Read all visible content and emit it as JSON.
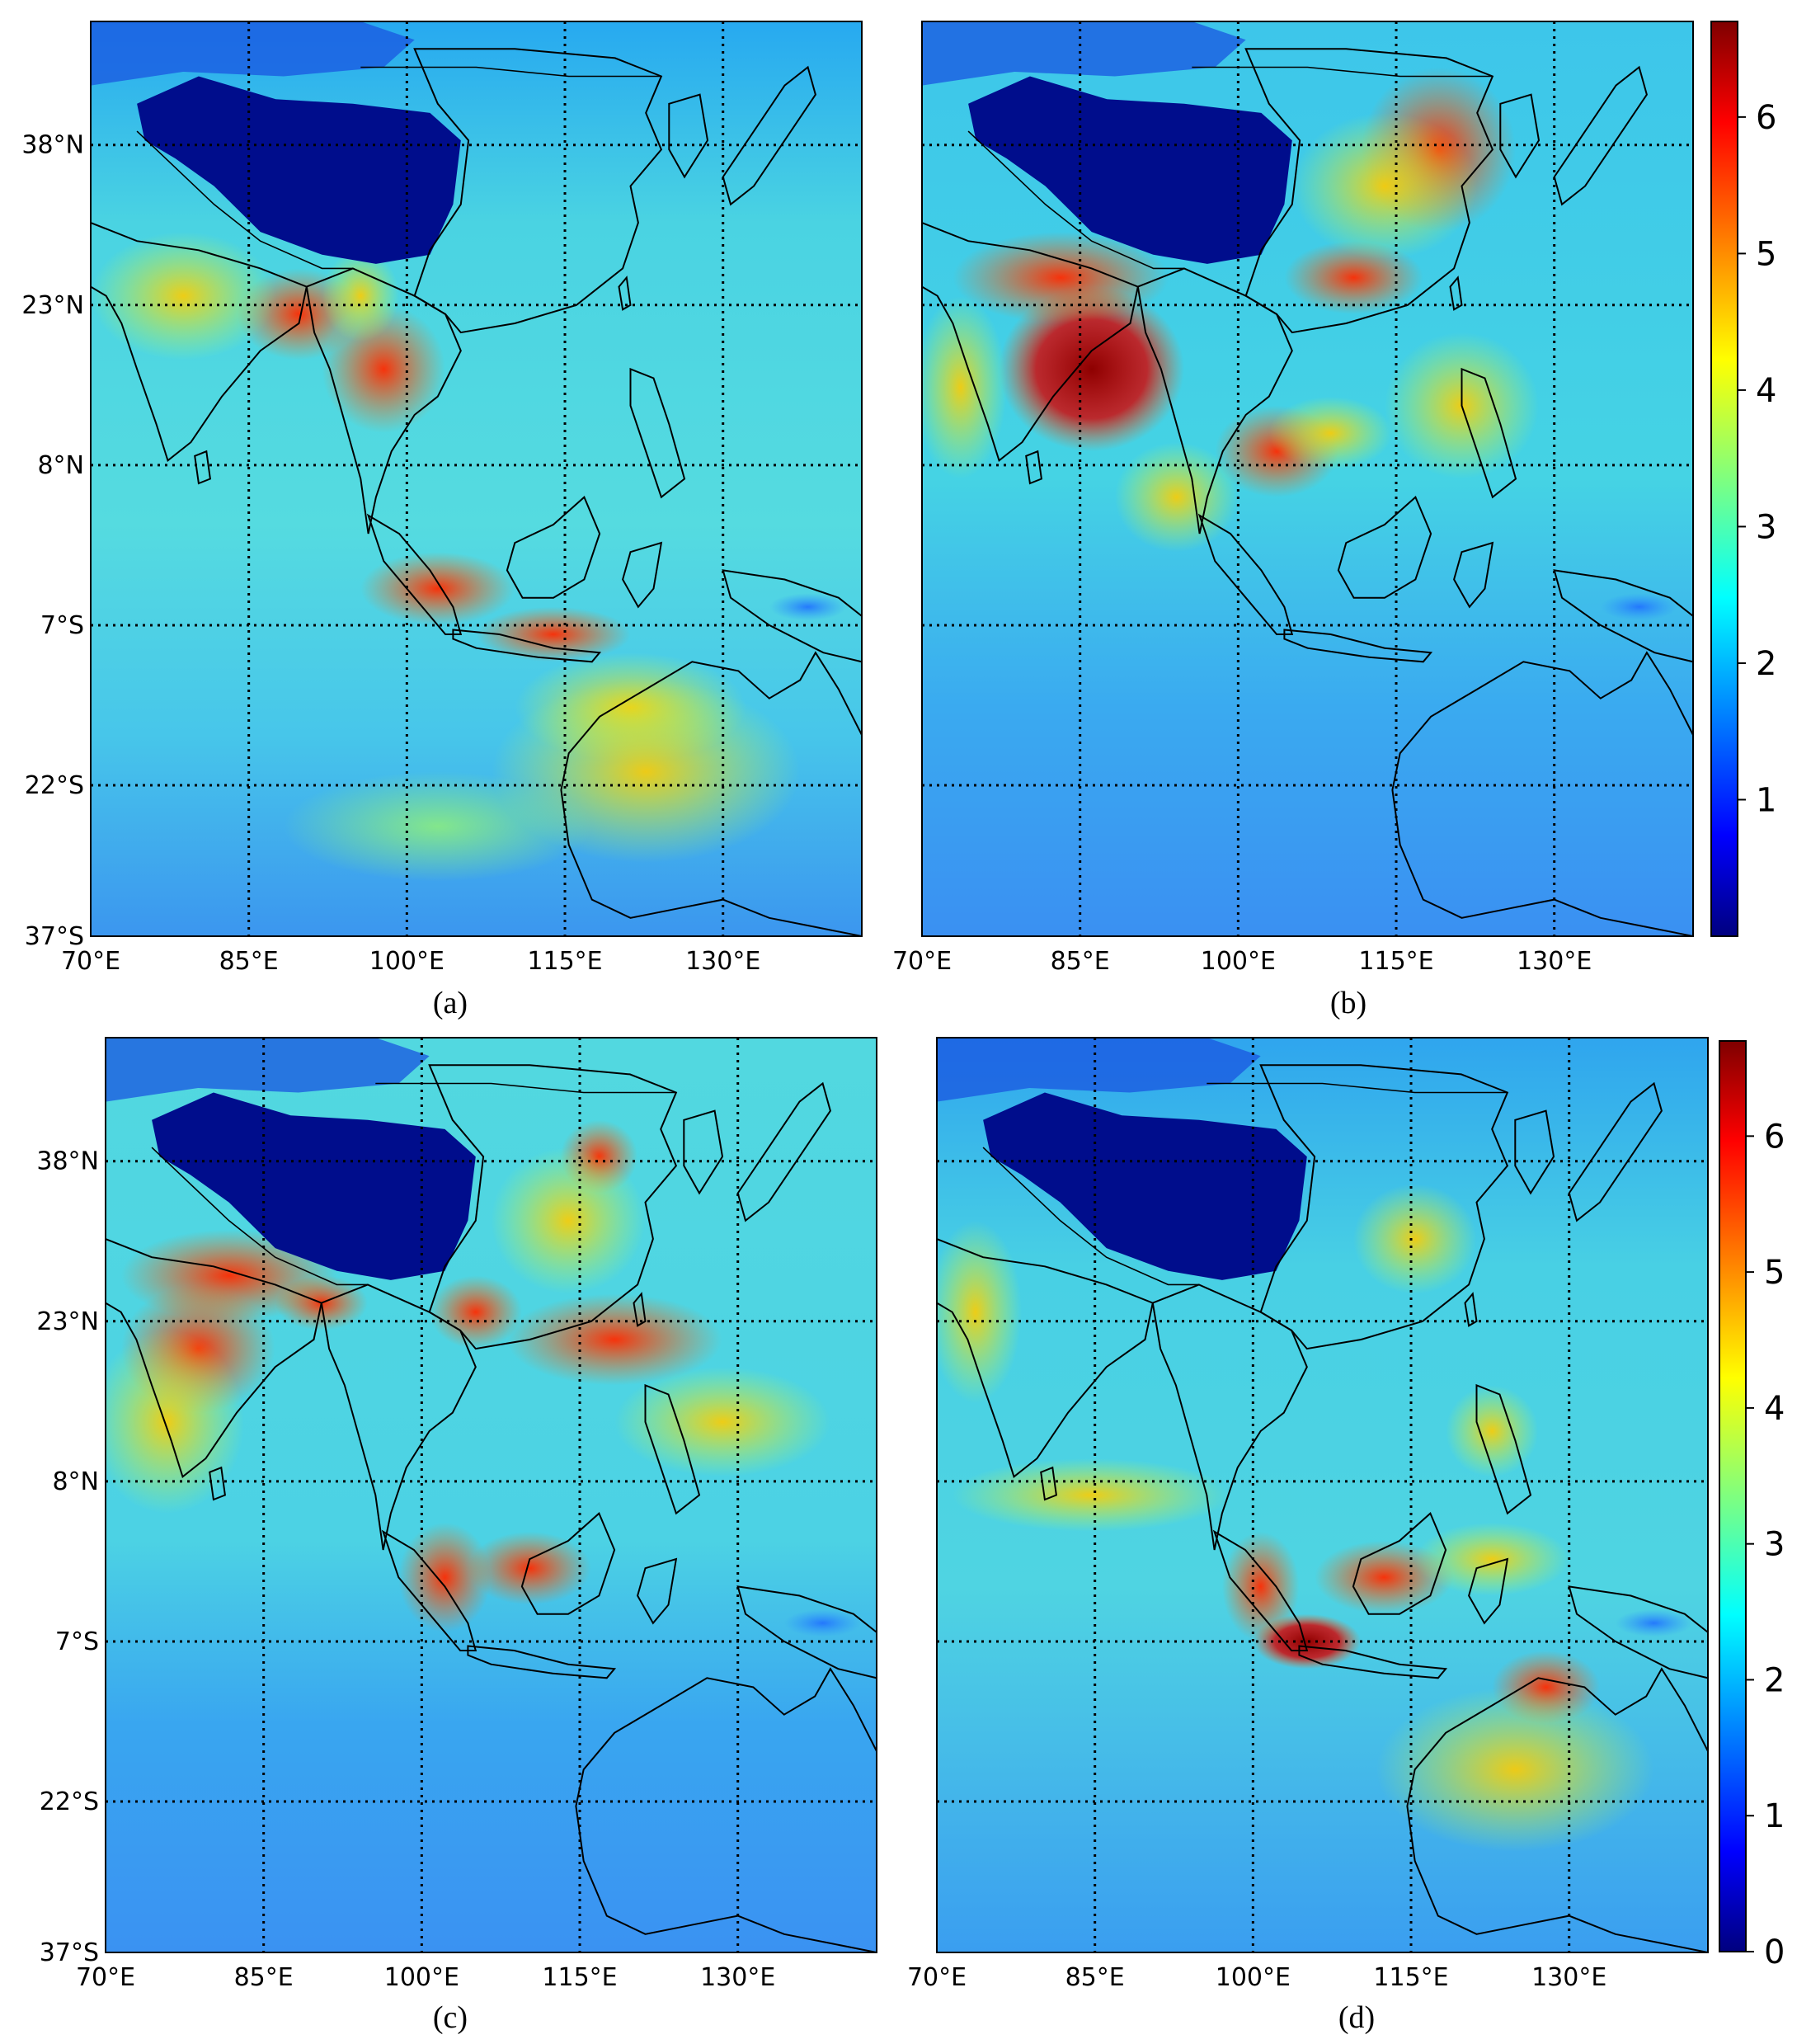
{
  "figure": {
    "panels": [
      {
        "id": "a",
        "caption": "(a)",
        "lat_labels": [
          "38°N",
          "23°N",
          "8°N",
          "7°S",
          "22°S",
          "37°S"
        ],
        "lon_labels": [
          "70°E",
          "85°E",
          "100°E",
          "115°E",
          "130°E"
        ],
        "has_colorbar": false
      },
      {
        "id": "b",
        "caption": "(b)",
        "lat_labels": [],
        "lon_labels": [
          "70°E",
          "85°E",
          "100°E",
          "115°E",
          "130°E"
        ],
        "has_colorbar": true
      },
      {
        "id": "c",
        "caption": "(c)",
        "lat_labels": [
          "38°N",
          "23°N",
          "8°N",
          "7°S",
          "22°S",
          "37°S"
        ],
        "lon_labels": [
          "70°E",
          "85°E",
          "100°E",
          "115°E",
          "130°E"
        ],
        "has_colorbar": false
      },
      {
        "id": "d",
        "caption": "(d)",
        "lat_labels": [],
        "lon_labels": [
          "70°E",
          "85°E",
          "100°E",
          "115°E",
          "130°E"
        ],
        "has_colorbar": true
      }
    ],
    "colorbars": [
      {
        "ticks": [
          "1",
          "2",
          "3",
          "4",
          "5",
          "6"
        ]
      },
      {
        "ticks": [
          "0",
          "1",
          "2",
          "3",
          "4",
          "5",
          "6"
        ]
      }
    ],
    "colormap": [
      "#00007f",
      "#0000ff",
      "#007fff",
      "#00ffff",
      "#7fff7f",
      "#ffff00",
      "#ff7f00",
      "#ff0000",
      "#7f0000"
    ],
    "colors": {
      "frame": "#000000",
      "grid": "#000000",
      "coast": "#000000"
    }
  }
}
